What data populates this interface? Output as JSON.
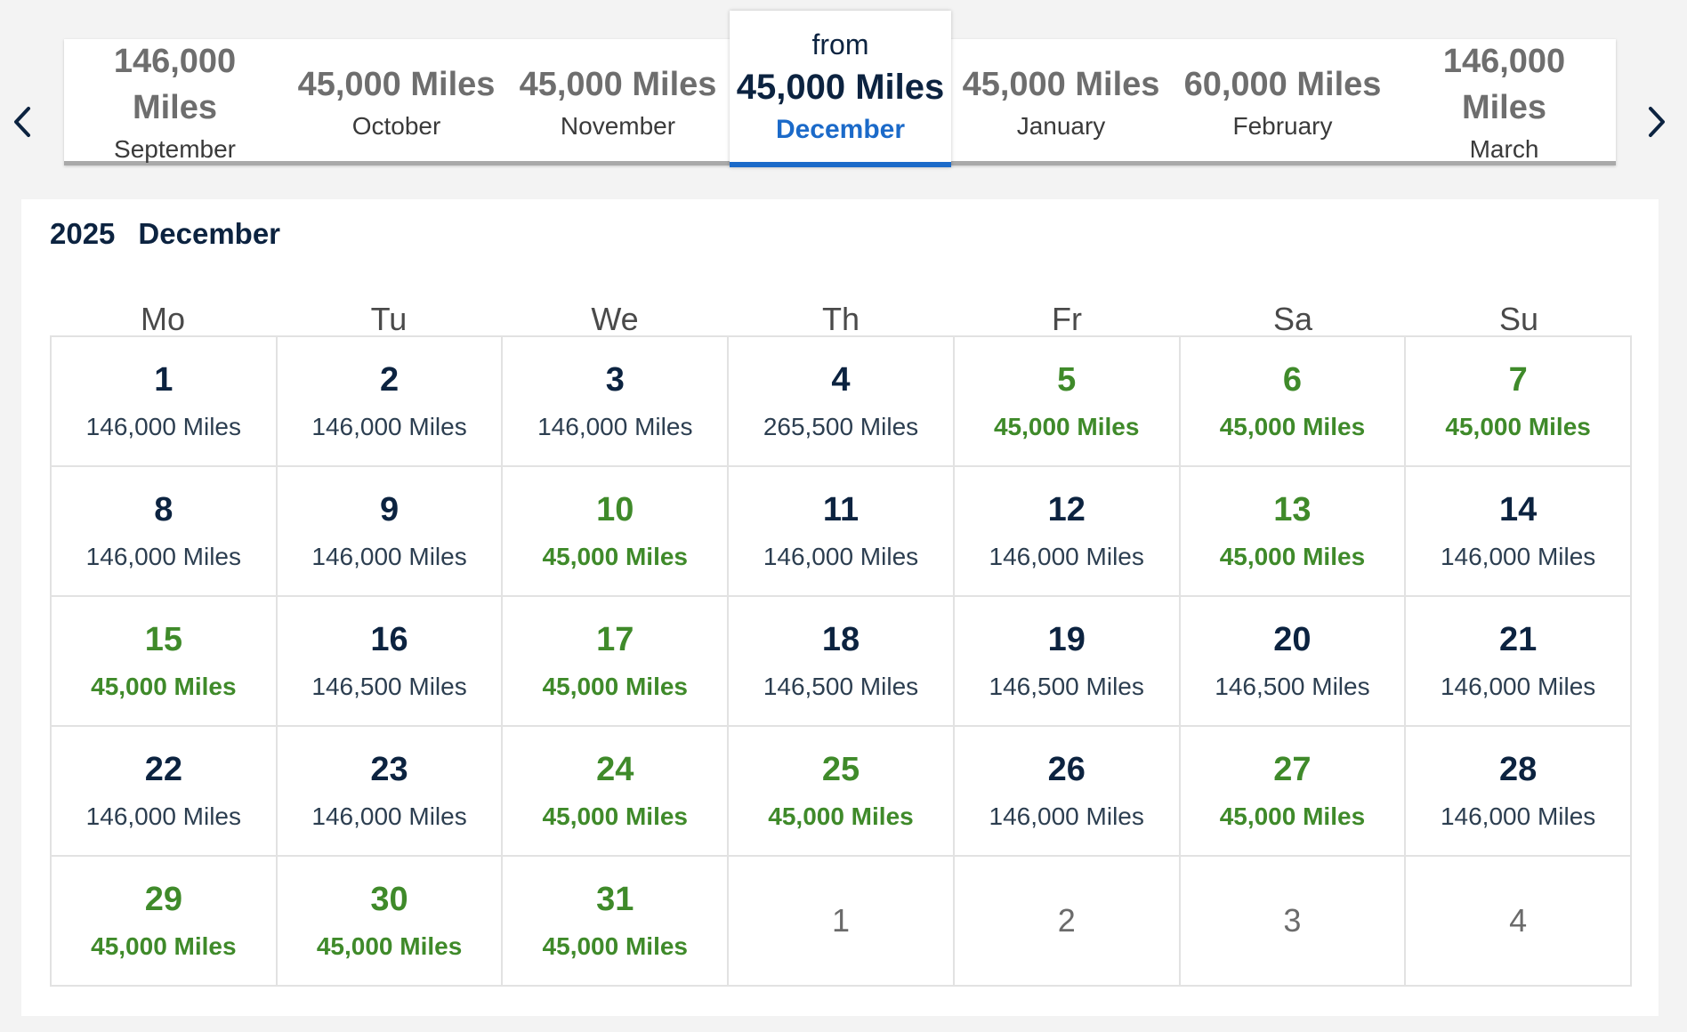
{
  "colors": {
    "accent": "#1b6ac9",
    "low_price": "#3f8a2a",
    "text": "#0c2340"
  },
  "icons": {
    "prev": "chevron-left-icon",
    "next": "chevron-right-icon"
  },
  "months": [
    {
      "price": "146,000 Miles",
      "name": "September"
    },
    {
      "price": "45,000 Miles",
      "name": "October"
    },
    {
      "price": "45,000 Miles",
      "name": "November"
    },
    {
      "from": "from",
      "price": "45,000 Miles",
      "name": "December",
      "selected": true
    },
    {
      "price": "45,000 Miles",
      "name": "January"
    },
    {
      "price": "60,000 Miles",
      "name": "February"
    },
    {
      "price": "146,000 Miles",
      "name": "March"
    }
  ],
  "calendar": {
    "year": "2025",
    "month": "December",
    "weekdays": [
      "Mo",
      "Tu",
      "We",
      "Th",
      "Fr",
      "Sa",
      "Su"
    ],
    "days": [
      {
        "day": "1",
        "miles": "146,000 Miles",
        "low": false
      },
      {
        "day": "2",
        "miles": "146,000 Miles",
        "low": false
      },
      {
        "day": "3",
        "miles": "146,000 Miles",
        "low": false
      },
      {
        "day": "4",
        "miles": "265,500 Miles",
        "low": false
      },
      {
        "day": "5",
        "miles": "45,000 Miles",
        "low": true
      },
      {
        "day": "6",
        "miles": "45,000 Miles",
        "low": true
      },
      {
        "day": "7",
        "miles": "45,000 Miles",
        "low": true
      },
      {
        "day": "8",
        "miles": "146,000 Miles",
        "low": false
      },
      {
        "day": "9",
        "miles": "146,000 Miles",
        "low": false
      },
      {
        "day": "10",
        "miles": "45,000 Miles",
        "low": true
      },
      {
        "day": "11",
        "miles": "146,000 Miles",
        "low": false
      },
      {
        "day": "12",
        "miles": "146,000 Miles",
        "low": false
      },
      {
        "day": "13",
        "miles": "45,000 Miles",
        "low": true
      },
      {
        "day": "14",
        "miles": "146,000 Miles",
        "low": false
      },
      {
        "day": "15",
        "miles": "45,000 Miles",
        "low": true
      },
      {
        "day": "16",
        "miles": "146,500 Miles",
        "low": false
      },
      {
        "day": "17",
        "miles": "45,000 Miles",
        "low": true
      },
      {
        "day": "18",
        "miles": "146,500 Miles",
        "low": false
      },
      {
        "day": "19",
        "miles": "146,500 Miles",
        "low": false
      },
      {
        "day": "20",
        "miles": "146,500 Miles",
        "low": false
      },
      {
        "day": "21",
        "miles": "146,000 Miles",
        "low": false
      },
      {
        "day": "22",
        "miles": "146,000 Miles",
        "low": false
      },
      {
        "day": "23",
        "miles": "146,000 Miles",
        "low": false
      },
      {
        "day": "24",
        "miles": "45,000 Miles",
        "low": true
      },
      {
        "day": "25",
        "miles": "45,000 Miles",
        "low": true
      },
      {
        "day": "26",
        "miles": "146,000 Miles",
        "low": false
      },
      {
        "day": "27",
        "miles": "45,000 Miles",
        "low": true
      },
      {
        "day": "28",
        "miles": "146,000 Miles",
        "low": false
      },
      {
        "day": "29",
        "miles": "45,000 Miles",
        "low": true
      },
      {
        "day": "30",
        "miles": "45,000 Miles",
        "low": true
      },
      {
        "day": "31",
        "miles": "45,000 Miles",
        "low": true
      }
    ],
    "trailing_days": [
      "1",
      "2",
      "3",
      "4"
    ]
  }
}
